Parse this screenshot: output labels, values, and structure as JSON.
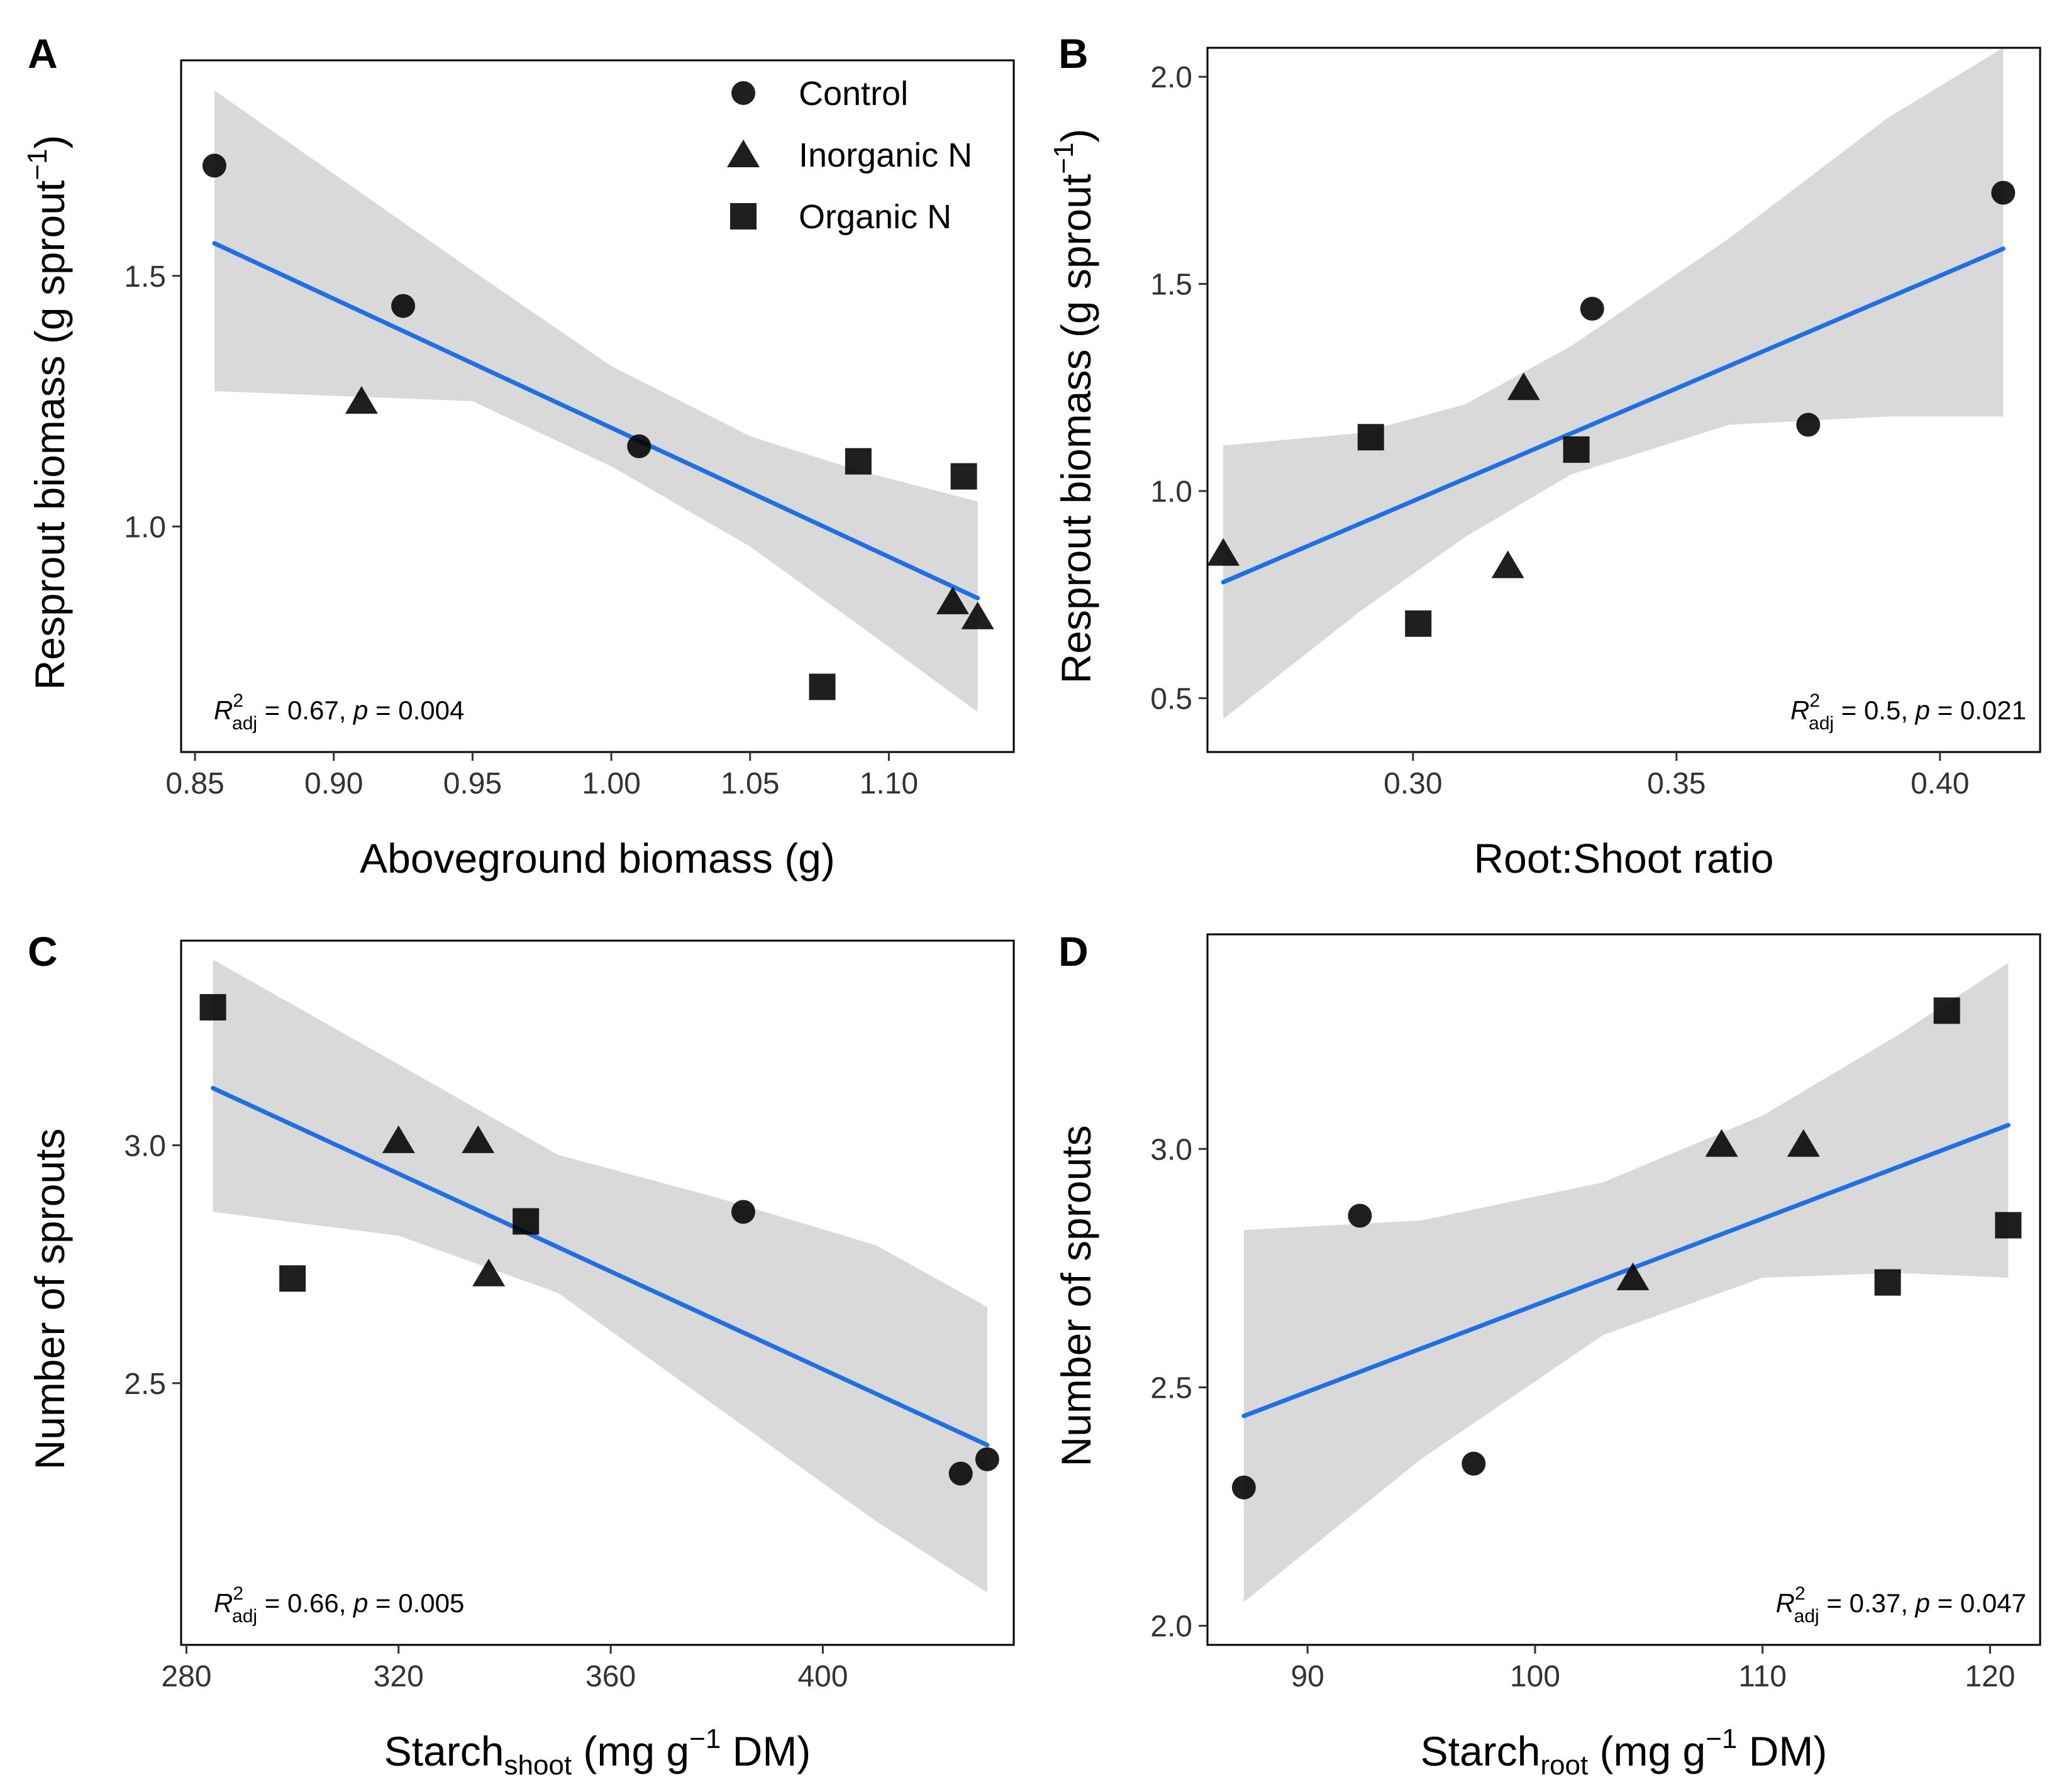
{
  "colors": {
    "fit_line": "#1f6fe5",
    "confidence_band": "#d9d9d9",
    "points": "#000000",
    "ticks": "#333333"
  },
  "legend": {
    "entries": [
      {
        "label": "Control",
        "shape": "circle"
      },
      {
        "label": "Inorganic N",
        "shape": "triangle"
      },
      {
        "label": "Organic N",
        "shape": "square"
      }
    ]
  },
  "chart_data": [
    {
      "type": "scatter",
      "panel_letter": "A",
      "xlabel": "Aboveground biomass (g)",
      "ylabel_parts": [
        "Resprout biomass (g sprout",
        "−1",
        ")"
      ],
      "xlim": [
        0.845,
        1.145
      ],
      "ylim": [
        0.55,
        1.93
      ],
      "xticks": [
        {
          "value": 0.85,
          "label": "0.85"
        },
        {
          "value": 0.9,
          "label": "0.90"
        },
        {
          "value": 0.95,
          "label": "0.95"
        },
        {
          "value": 1.0,
          "label": "1.00"
        },
        {
          "value": 1.05,
          "label": "1.05"
        },
        {
          "value": 1.1,
          "label": "1.10"
        }
      ],
      "yticks": [
        {
          "value": 1.0,
          "label": "1.0"
        },
        {
          "value": 1.5,
          "label": "1.5"
        }
      ],
      "show_legend": true,
      "stats": {
        "r2_prefix": "R",
        "r2_sup": "2",
        "r2_sub": "adj",
        "r2_value": " = 0.67,  ",
        "p_prefix": "p",
        "p_value": " = 0.004",
        "position": "bottom-left"
      },
      "series": [
        {
          "name": "Control",
          "shape": "circle",
          "points": [
            [
              0.857,
              1.72
            ],
            [
              0.925,
              1.44
            ],
            [
              1.01,
              1.16
            ]
          ]
        },
        {
          "name": "Inorganic N",
          "shape": "triangle",
          "points": [
            [
              0.91,
              1.25
            ],
            [
              1.123,
              0.85
            ],
            [
              1.132,
              0.82
            ]
          ]
        },
        {
          "name": "Organic N",
          "shape": "square",
          "points": [
            [
              1.089,
              1.13
            ],
            [
              1.127,
              1.1
            ],
            [
              1.076,
              0.68
            ]
          ]
        }
      ],
      "fit": {
        "x": [
          0.857,
          1.132
        ],
        "y": [
          1.565,
          0.857
        ]
      },
      "band": {
        "x": [
          0.857,
          0.95,
          1.0,
          1.05,
          1.09,
          1.132
        ],
        "upper": [
          1.87,
          1.51,
          1.32,
          1.18,
          1.11,
          1.05
        ],
        "lower": [
          1.27,
          1.25,
          1.12,
          0.96,
          0.8,
          0.63
        ]
      }
    },
    {
      "type": "scatter",
      "panel_letter": "B",
      "xlabel": "Root:Shoot ratio",
      "ylabel_parts": [
        "Resprout biomass (g sprout",
        "−1",
        ")"
      ],
      "xlim": [
        0.261,
        0.419
      ],
      "ylim": [
        0.37,
        2.07
      ],
      "xticks": [
        {
          "value": 0.3,
          "label": "0.30"
        },
        {
          "value": 0.35,
          "label": "0.35"
        },
        {
          "value": 0.4,
          "label": "0.40"
        }
      ],
      "yticks": [
        {
          "value": 0.5,
          "label": "0.5"
        },
        {
          "value": 1.0,
          "label": "1.0"
        },
        {
          "value": 1.5,
          "label": "1.5"
        },
        {
          "value": 2.0,
          "label": "2.0"
        }
      ],
      "show_legend": false,
      "stats": {
        "r2_prefix": "R",
        "r2_sup": "2",
        "r2_sub": "adj",
        "r2_value": " = 0.5,  ",
        "p_prefix": "p",
        "p_value": " = 0.021",
        "position": "bottom-right"
      },
      "series": [
        {
          "name": "Control",
          "shape": "circle",
          "points": [
            [
              0.334,
              1.44
            ],
            [
              0.375,
              1.16
            ],
            [
              0.412,
              1.72
            ]
          ]
        },
        {
          "name": "Inorganic N",
          "shape": "triangle",
          "points": [
            [
              0.264,
              0.85
            ],
            [
              0.321,
              1.25
            ],
            [
              0.318,
              0.82
            ]
          ]
        },
        {
          "name": "Organic N",
          "shape": "square",
          "points": [
            [
              0.292,
              1.13
            ],
            [
              0.331,
              1.1
            ],
            [
              0.301,
              0.68
            ]
          ]
        }
      ],
      "fit": {
        "x": [
          0.264,
          0.412
        ],
        "y": [
          0.78,
          1.585
        ]
      },
      "band": {
        "x": [
          0.264,
          0.29,
          0.31,
          0.33,
          0.36,
          0.39,
          0.412
        ],
        "upper": [
          1.11,
          1.14,
          1.21,
          1.35,
          1.61,
          1.9,
          2.07
        ],
        "lower": [
          0.45,
          0.71,
          0.89,
          1.04,
          1.16,
          1.18,
          1.18
        ]
      }
    },
    {
      "type": "scatter",
      "panel_letter": "C",
      "xlabel_parts": [
        "Starch",
        "shoot",
        " (mg g",
        "−1",
        " DM)"
      ],
      "ylabel_parts": [
        "Number of sprouts",
        "",
        ""
      ],
      "xlim": [
        279,
        436
      ],
      "ylim": [
        1.95,
        3.43
      ],
      "xticks": [
        {
          "value": 280,
          "label": "280"
        },
        {
          "value": 320,
          "label": "320"
        },
        {
          "value": 360,
          "label": "360"
        },
        {
          "value": 400,
          "label": "400"
        }
      ],
      "yticks": [
        {
          "value": 2.5,
          "label": "2.5"
        },
        {
          "value": 3.0,
          "label": "3.0"
        }
      ],
      "show_legend": false,
      "stats": {
        "r2_prefix": "R",
        "r2_sup": "2",
        "r2_sub": "adj",
        "r2_value": " = 0.66,  ",
        "p_prefix": "p",
        "p_value": " = 0.005",
        "position": "bottom-left"
      },
      "series": [
        {
          "name": "Control",
          "shape": "circle",
          "points": [
            [
              385,
              2.86
            ],
            [
              426,
              2.31
            ],
            [
              431,
              2.34
            ]
          ]
        },
        {
          "name": "Inorganic N",
          "shape": "triangle",
          "points": [
            [
              320,
              3.01
            ],
            [
              335,
              3.01
            ],
            [
              337,
              2.73
            ]
          ]
        },
        {
          "name": "Organic N",
          "shape": "square",
          "points": [
            [
              285,
              3.29
            ],
            [
              300,
              2.72
            ],
            [
              344,
              2.84
            ]
          ]
        }
      ],
      "fit": {
        "x": [
          285,
          431
        ],
        "y": [
          3.12,
          2.37
        ]
      },
      "band": {
        "x": [
          285,
          320,
          350,
          380,
          410,
          431
        ],
        "upper": [
          3.39,
          3.17,
          2.98,
          2.89,
          2.79,
          2.66
        ],
        "lower": [
          2.86,
          2.81,
          2.69,
          2.45,
          2.21,
          2.06
        ]
      }
    },
    {
      "type": "scatter",
      "panel_letter": "D",
      "xlabel_parts": [
        "Starch",
        "root",
        " (mg g",
        "−1",
        " DM)"
      ],
      "ylabel_parts": [
        "Number of sprouts",
        "",
        ""
      ],
      "xlim": [
        85.6,
        122.2
      ],
      "ylim": [
        1.96,
        3.45
      ],
      "xticks": [
        {
          "value": 90,
          "label": "90"
        },
        {
          "value": 100,
          "label": "100"
        },
        {
          "value": 110,
          "label": "110"
        },
        {
          "value": 120,
          "label": "120"
        }
      ],
      "yticks": [
        {
          "value": 2.0,
          "label": "2.0"
        },
        {
          "value": 2.5,
          "label": "2.5"
        },
        {
          "value": 3.0,
          "label": "3.0"
        }
      ],
      "show_legend": false,
      "stats": {
        "r2_prefix": "R",
        "r2_sup": "2",
        "r2_sub": "adj",
        "r2_value": " = 0.37,  ",
        "p_prefix": "p",
        "p_value": " = 0.047",
        "position": "bottom-right"
      },
      "series": [
        {
          "name": "Control",
          "shape": "circle",
          "points": [
            [
              87.2,
              2.29
            ],
            [
              92.3,
              2.86
            ],
            [
              97.3,
              2.34
            ]
          ]
        },
        {
          "name": "Inorganic N",
          "shape": "triangle",
          "points": [
            [
              104.3,
              2.73
            ],
            [
              108.2,
              3.01
            ],
            [
              111.8,
              3.01
            ]
          ]
        },
        {
          "name": "Organic N",
          "shape": "square",
          "points": [
            [
              115.5,
              2.72
            ],
            [
              118.1,
              3.29
            ],
            [
              120.8,
              2.84
            ]
          ]
        }
      ],
      "fit": {
        "x": [
          87.2,
          120.8
        ],
        "y": [
          2.44,
          3.05
        ]
      },
      "band": {
        "x": [
          87.2,
          95,
          103,
          110,
          116,
          120.8
        ],
        "upper": [
          2.83,
          2.85,
          2.93,
          3.07,
          3.24,
          3.39
        ],
        "lower": [
          2.05,
          2.35,
          2.61,
          2.73,
          2.74,
          2.73
        ]
      }
    }
  ]
}
